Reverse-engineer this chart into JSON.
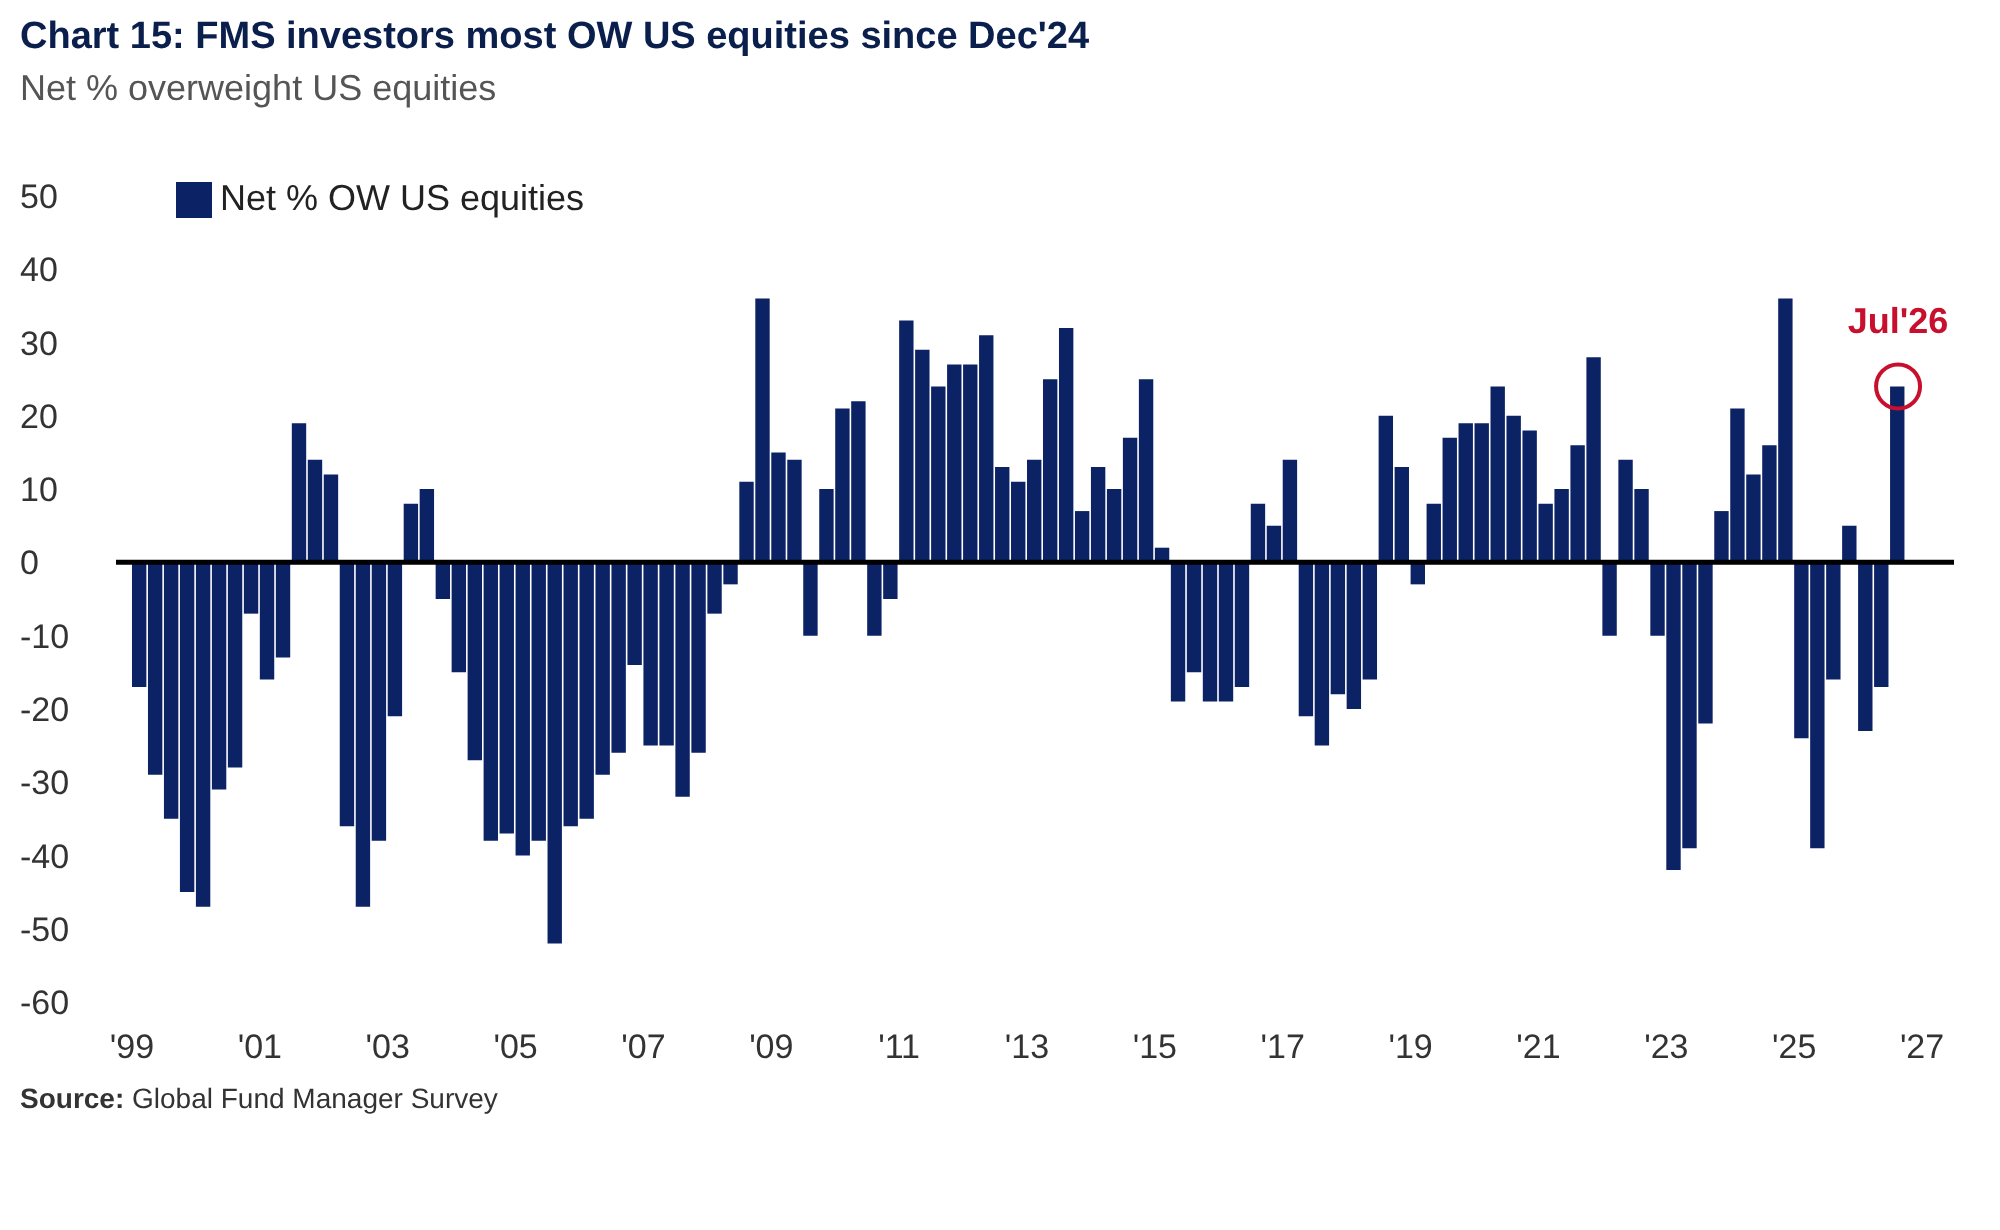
{
  "chart_data": {
    "type": "bar",
    "title": "Chart 15: FMS investors most OW US equities since Dec'24",
    "subtitle": "Net % overweight US equities",
    "x": [
      1999.125,
      1999.375,
      1999.625,
      1999.875,
      2000.125,
      2000.375,
      2000.625,
      2000.875,
      2001.125,
      2001.375,
      2001.625,
      2001.875,
      2002.125,
      2002.375,
      2002.625,
      2002.875,
      2003.125,
      2003.375,
      2003.625,
      2003.875,
      2004.125,
      2004.375,
      2004.625,
      2004.875,
      2005.125,
      2005.375,
      2005.625,
      2005.875,
      2006.125,
      2006.375,
      2006.625,
      2006.875,
      2007.125,
      2007.375,
      2007.625,
      2007.875,
      2008.125,
      2008.375,
      2008.625,
      2008.875,
      2009.125,
      2009.375,
      2009.625,
      2009.875,
      2010.125,
      2010.375,
      2010.625,
      2010.875,
      2011.125,
      2011.375,
      2011.625,
      2011.875,
      2012.125,
      2012.375,
      2012.625,
      2012.875,
      2013.125,
      2013.375,
      2013.625,
      2013.875,
      2014.125,
      2014.375,
      2014.625,
      2014.875,
      2015.125,
      2015.375,
      2015.625,
      2015.875,
      2016.125,
      2016.375,
      2016.625,
      2016.875,
      2017.125,
      2017.375,
      2017.625,
      2017.875,
      2018.125,
      2018.375,
      2018.625,
      2018.875,
      2019.125,
      2019.375,
      2019.625,
      2019.875,
      2020.125,
      2020.375,
      2020.625,
      2020.875,
      2021.125,
      2021.375,
      2021.625,
      2021.875,
      2022.125,
      2022.375,
      2022.625,
      2022.875,
      2023.125,
      2023.375,
      2023.625,
      2023.875,
      2024.125,
      2024.375,
      2024.625,
      2024.875,
      2025.125,
      2025.375,
      2025.625,
      2025.875,
      2026.125,
      2026.375,
      2026.625
    ],
    "series": [
      {
        "name": "Net % OW US equities",
        "color": "#0b2265",
        "values": [
          -17,
          -29,
          -35,
          -45,
          -47,
          -31,
          -28,
          -7,
          -16,
          -13,
          19,
          14,
          12,
          -36,
          -47,
          -38,
          -21,
          8,
          10,
          -5,
          -15,
          -27,
          -38,
          -37,
          -40,
          -38,
          -52,
          -36,
          -35,
          -29,
          -26,
          -14,
          -25,
          -25,
          -32,
          -26,
          -7,
          -3,
          11,
          36,
          15,
          14,
          -10,
          10,
          21,
          22,
          -10,
          -5,
          33,
          29,
          24,
          27,
          27,
          31,
          13,
          11,
          14,
          25,
          32,
          7,
          13,
          10,
          17,
          25,
          2,
          -19,
          -15,
          -19,
          -19,
          -17,
          8,
          5,
          14,
          -21,
          -25,
          -18,
          -20,
          -16,
          20,
          13,
          -3,
          8,
          17,
          19,
          19,
          24,
          20,
          18,
          8,
          10,
          16,
          28,
          -10,
          14,
          10,
          -10,
          -42,
          -39,
          -22,
          7,
          21,
          12,
          16,
          36,
          -24,
          -39,
          -16,
          5,
          -23,
          -17,
          24
        ]
      }
    ],
    "xlim": [
      1998.75,
      2027.5
    ],
    "xticks": [
      {
        "value": 1999,
        "label": "'99"
      },
      {
        "value": 2001,
        "label": "'01"
      },
      {
        "value": 2003,
        "label": "'03"
      },
      {
        "value": 2005,
        "label": "'05"
      },
      {
        "value": 2007,
        "label": "'07"
      },
      {
        "value": 2009,
        "label": "'09"
      },
      {
        "value": 2011,
        "label": "'11"
      },
      {
        "value": 2013,
        "label": "'13"
      },
      {
        "value": 2015,
        "label": "'15"
      },
      {
        "value": 2017,
        "label": "'17"
      },
      {
        "value": 2019,
        "label": "'19"
      },
      {
        "value": 2021,
        "label": "'21"
      },
      {
        "value": 2023,
        "label": "'23"
      },
      {
        "value": 2025,
        "label": "'25"
      },
      {
        "value": 2027,
        "label": "'27"
      }
    ],
    "ylim": [
      -60,
      50
    ],
    "yticks": [
      -60,
      -50,
      -40,
      -30,
      -20,
      -10,
      0,
      10,
      20,
      30,
      40,
      50
    ],
    "ref_lines": [
      {
        "axis": "y",
        "value": 0,
        "color": "#000000"
      }
    ],
    "annotations": [
      {
        "text": "Jul'26",
        "x": 2026.625,
        "y": 24
      },
      "Source: Global Fund Manager Survey"
    ],
    "legend": "top left"
  }
}
